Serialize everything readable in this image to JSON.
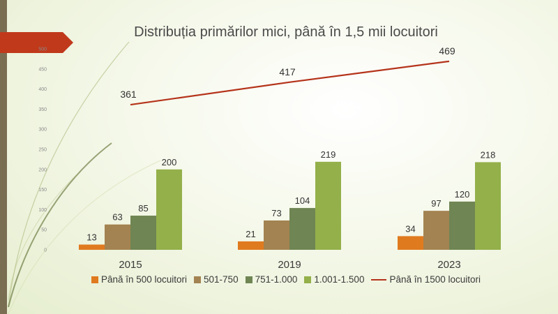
{
  "chart_data": {
    "type": "bar",
    "title": "Distribuția primărilor mici, până în 1,5 mii locuitori",
    "categories": [
      "2015",
      "2019",
      "2023"
    ],
    "series": [
      {
        "name": "Până în 500 locuitori",
        "kind": "bar",
        "color": "#e07a1f",
        "values": [
          13,
          21,
          34
        ]
      },
      {
        "name": "501-750",
        "kind": "bar",
        "color": "#a38351",
        "values": [
          63,
          73,
          97
        ]
      },
      {
        "name": "751-1.000",
        "kind": "bar",
        "color": "#6f8553",
        "values": [
          85,
          104,
          120
        ]
      },
      {
        "name": "1.001-1.500",
        "kind": "bar",
        "color": "#94b04a",
        "values": [
          200,
          219,
          218
        ]
      },
      {
        "name": "Până în 1500 locuitori",
        "kind": "line",
        "color": "#b5331a",
        "values": [
          361,
          417,
          469
        ]
      }
    ],
    "ylim": [
      0,
      500
    ],
    "yticks": [
      0,
      50,
      100,
      150,
      200,
      250,
      300,
      350,
      400,
      450,
      500
    ],
    "legend_position": "bottom",
    "grid": false
  },
  "theme": {
    "sidebar_color": "#7a6e52",
    "banner_color": "#c0391b",
    "arc_color": "#8a9a5b"
  }
}
